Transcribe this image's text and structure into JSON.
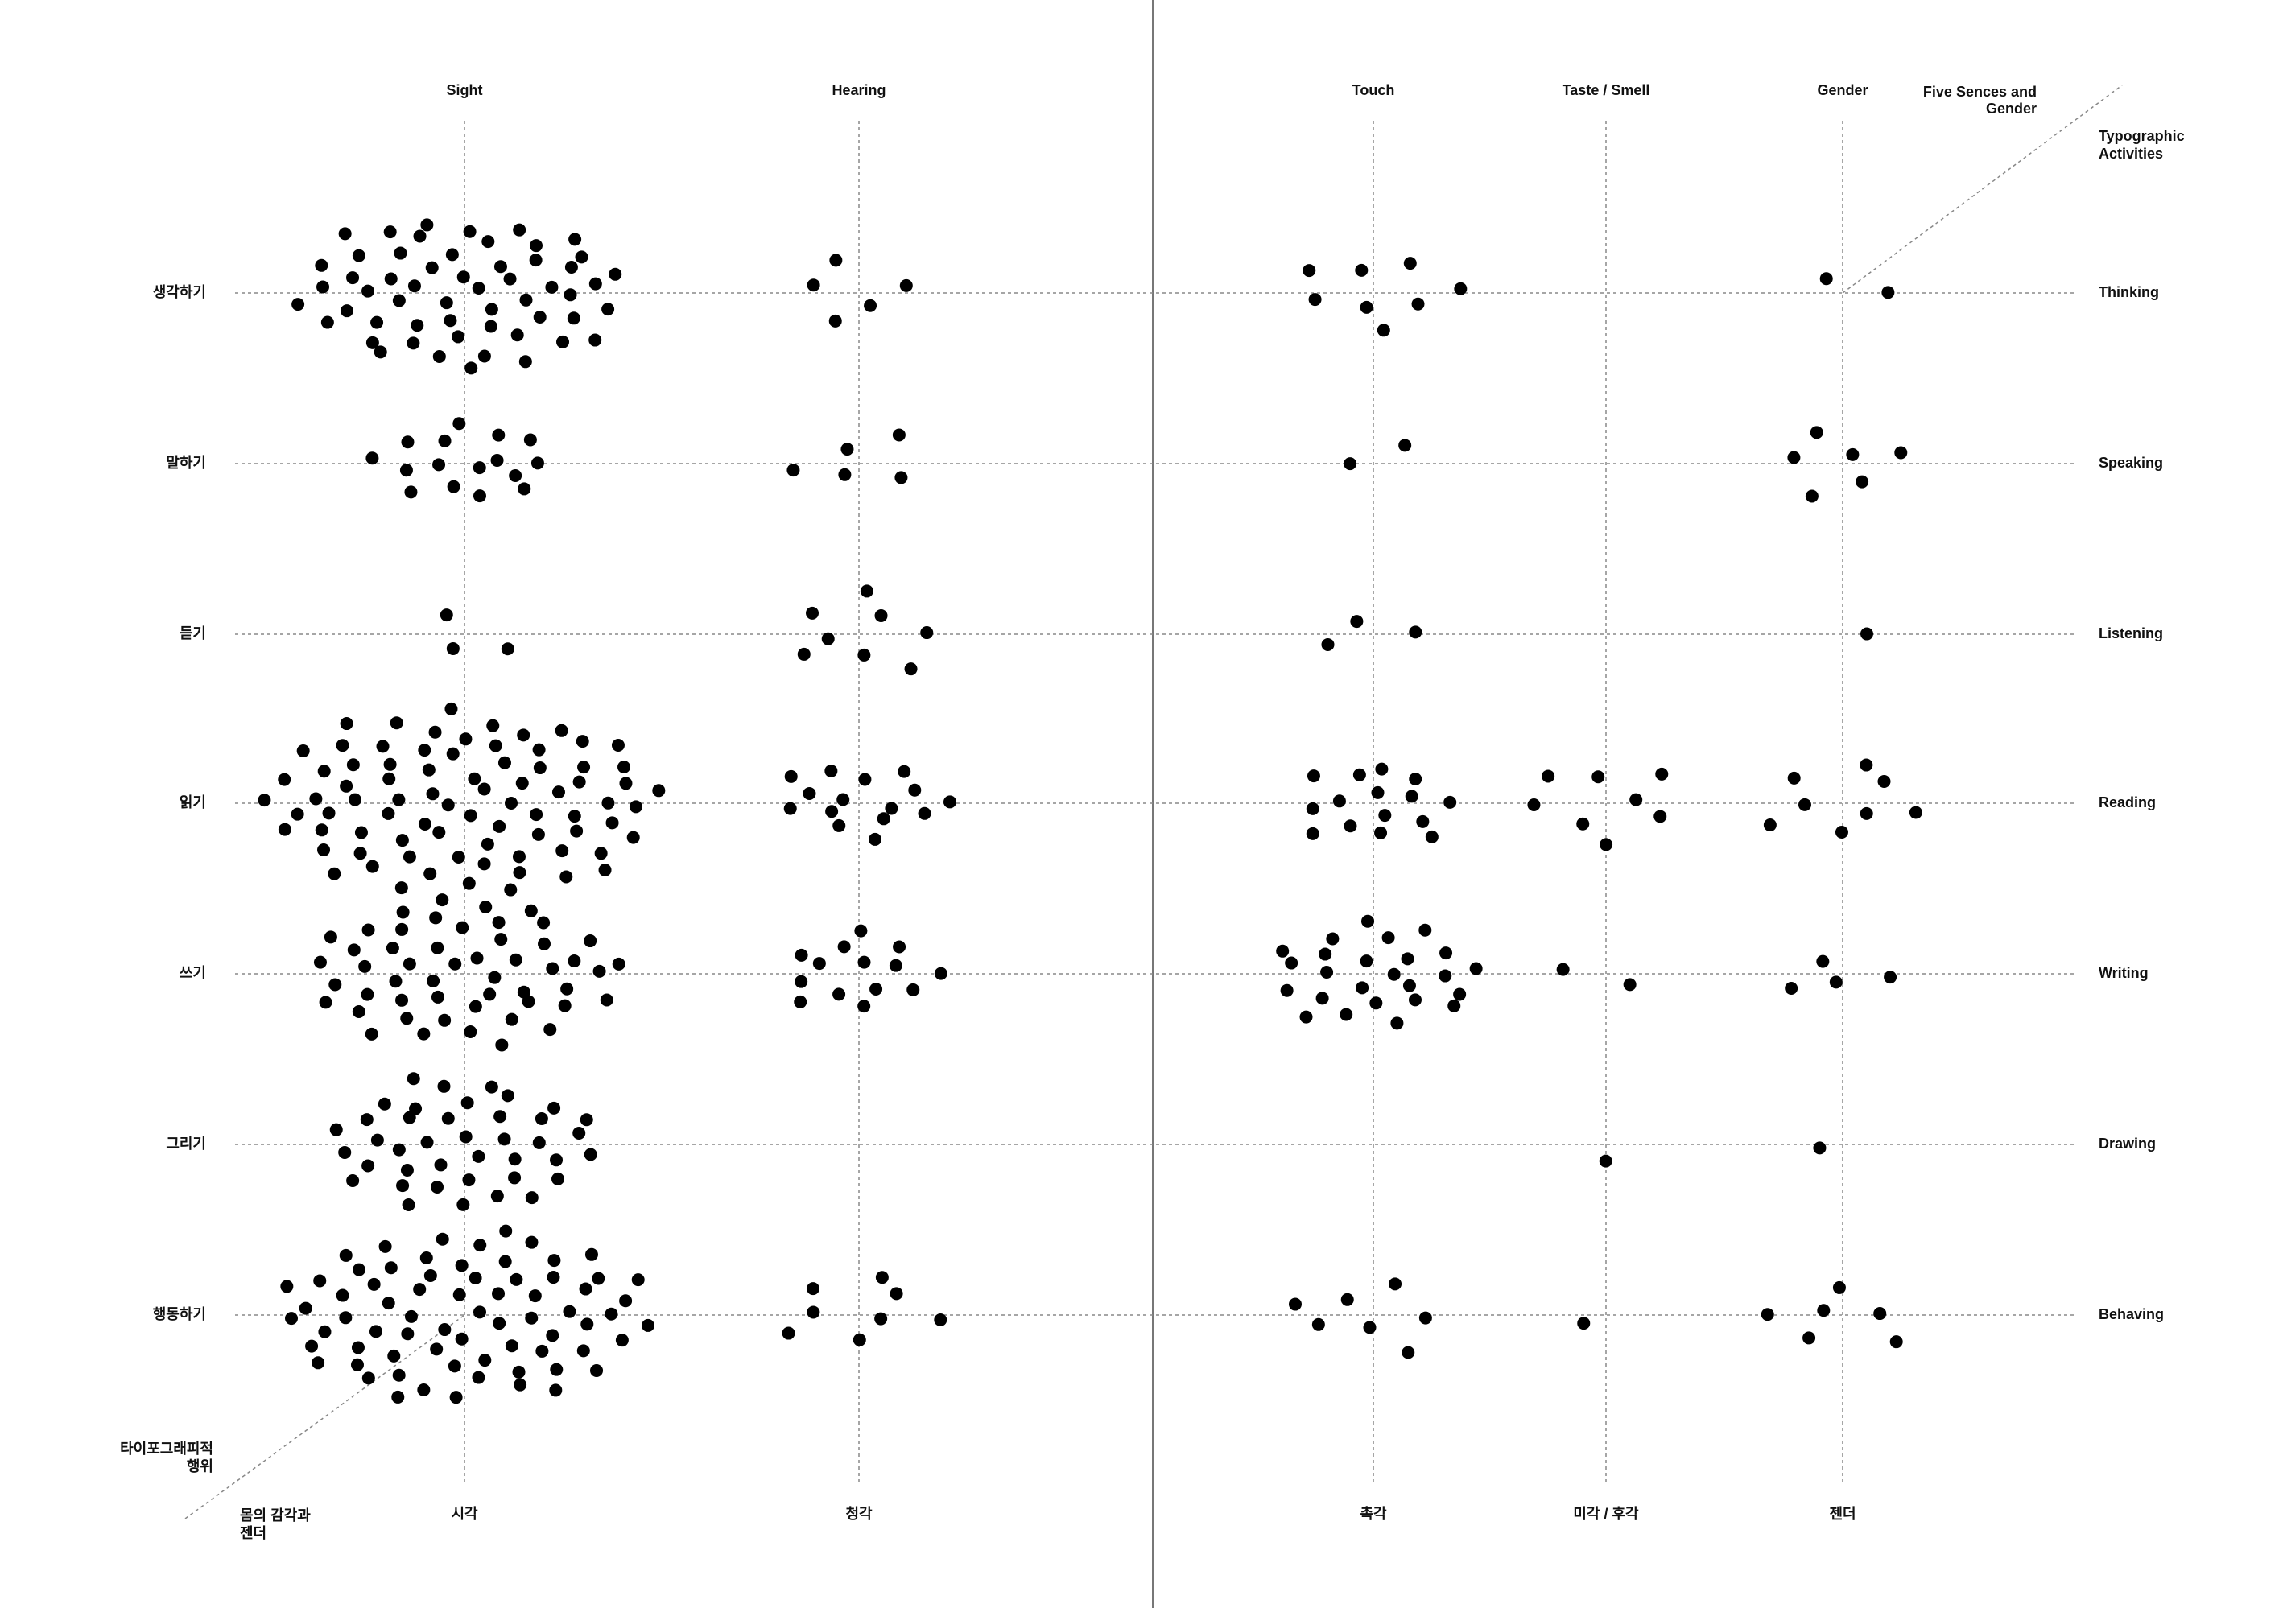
{
  "chart_data": {
    "type": "dot-matrix",
    "color": "#000000",
    "column_axis_title": [
      "Five Sences and",
      "Gender"
    ],
    "row_axis_title": [
      "Typographic",
      "Activities"
    ],
    "column_axis_title_ko": [
      "몸의 감각과",
      "젠더"
    ],
    "row_axis_title_ko": [
      "타이포그래피적",
      "행위"
    ],
    "categories": [
      "Thinking",
      "Speaking",
      "Listening",
      "Reading",
      "Writing",
      "Drawing",
      "Behaving"
    ],
    "categories_ko": [
      "생각하기",
      "말하기",
      "듣기",
      "읽기",
      "쓰기",
      "그리기",
      "행동하기"
    ],
    "series": [
      {
        "name": "Sight",
        "name_ko": "시각",
        "values": [
          55,
          16,
          3,
          80,
          50,
          40,
          70
        ]
      },
      {
        "name": "Hearing",
        "name_ko": "청각",
        "values": [
          5,
          5,
          8,
          15,
          14,
          0,
          8
        ]
      },
      {
        "name": "Touch",
        "name_ko": "촉각",
        "values": [
          8,
          2,
          3,
          15,
          25,
          0,
          7
        ]
      },
      {
        "name": "Taste / Smell",
        "name_ko": "미각 / 후각",
        "values": [
          0,
          0,
          0,
          8,
          2,
          1,
          1
        ]
      },
      {
        "name": "Gender",
        "name_ko": "젠더",
        "values": [
          2,
          6,
          1,
          8,
          4,
          1,
          6
        ]
      }
    ]
  }
}
